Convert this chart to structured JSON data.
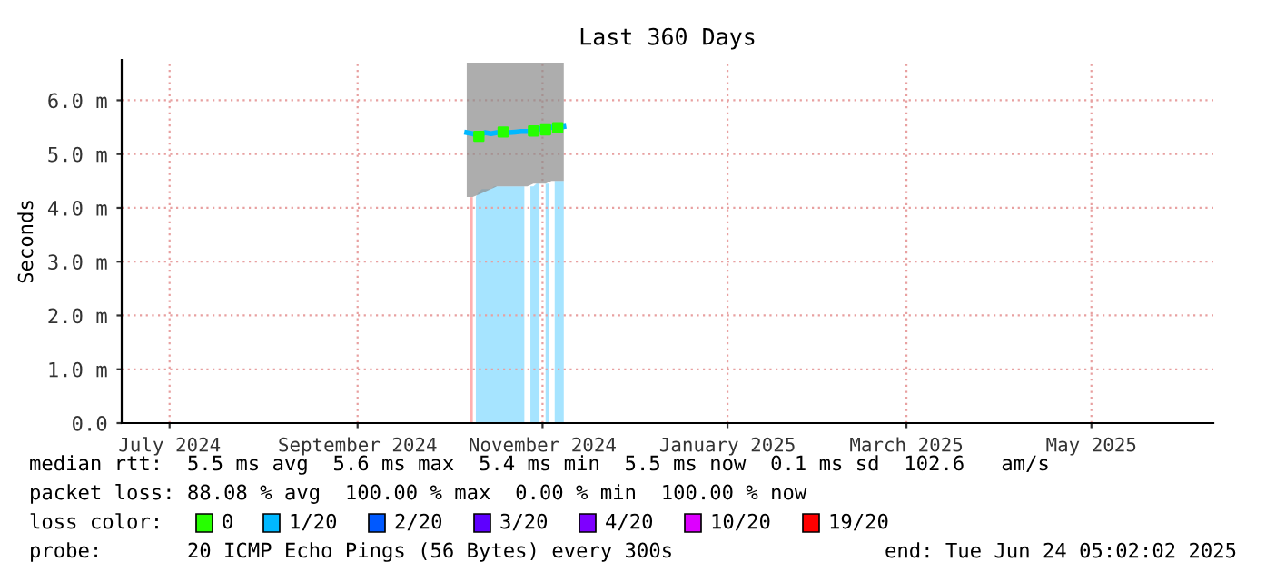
{
  "chart_data": {
    "type": "line",
    "title": "Last 360 Days",
    "ylabel": "Seconds",
    "xlim": [
      "2024-06-29T05:02",
      "2025-06-24T05:02"
    ],
    "xticks": [
      {
        "value": "2024-07-15",
        "label": "July 2024"
      },
      {
        "value": "2024-09-15",
        "label": "September 2024"
      },
      {
        "value": "2024-11-15",
        "label": "November 2024"
      },
      {
        "value": "2025-01-15",
        "label": "January 2025"
      },
      {
        "value": "2025-03-15",
        "label": "March 2025"
      },
      {
        "value": "2025-05-15",
        "label": "May 2025"
      }
    ],
    "ylim": [
      0,
      6.75
    ],
    "yticks": [
      {
        "value": 0,
        "label": "0.0"
      },
      {
        "value": 1,
        "label": "1.0 m"
      },
      {
        "value": 2,
        "label": "2.0 m"
      },
      {
        "value": 3,
        "label": "3.0 m"
      },
      {
        "value": 4,
        "label": "4.0 m"
      },
      {
        "value": 5,
        "label": "5.0 m"
      },
      {
        "value": 6,
        "label": "6.0 m"
      }
    ],
    "grid": true,
    "legend": "bottom",
    "legend_title": "loss color:",
    "series": [
      {
        "type": "area",
        "color": "#ffb0b0",
        "x": [
          "2024-10-22",
          "2024-10-23"
        ],
        "values": [
          4.2,
          4.2
        ]
      },
      {
        "type": "area",
        "color": "#a6e4ff",
        "x": [
          "2024-10-24",
          "2024-10-25",
          "2024-10-26",
          "2024-10-27",
          "2024-10-28",
          "2024-10-29",
          "2024-10-30",
          "2024-10-31",
          "2024-11-01",
          "2024-11-02",
          "2024-11-03",
          "2024-11-04",
          "2024-11-05",
          "2024-11-06",
          "2024-11-07",
          "2024-11-08",
          "2024-11-09",
          "2024-11-10",
          "2024-11-11",
          "2024-11-12",
          "2024-11-13",
          "2024-11-14",
          "2024-11-15",
          "2024-11-16",
          "2024-11-17",
          "2024-11-18",
          "2024-11-19",
          "2024-11-20",
          "2024-11-21",
          "2024-11-22"
        ],
        "values": [
          4.2,
          4.3,
          4.35,
          4.35,
          4.35,
          4.35,
          4.4,
          4.4,
          4.4,
          4.4,
          4.4,
          4.4,
          4.4,
          4.4,
          4.4,
          4.4,
          4.4,
          null,
          4.4,
          4.4,
          4.45,
          4.45,
          null,
          4.45,
          4.45,
          null,
          4.5,
          4.5,
          4.5,
          4.5
        ]
      },
      {
        "type": "scatter",
        "name": "0",
        "color": "#26ff00",
        "marker": "square",
        "x": [
          "2024-10-25",
          "2024-11-02",
          "2024-11-12",
          "2024-11-16",
          "2024-11-20"
        ],
        "values": [
          5.33,
          5.41,
          5.43,
          5.45,
          5.49
        ]
      },
      {
        "name": "1/20",
        "color": "#00b8ff",
        "x": [
          "2024-10-21",
          "2024-10-23",
          "2024-10-25",
          "2024-10-27",
          "2024-10-29",
          "2024-10-31",
          "2024-11-02",
          "2024-11-04",
          "2024-11-06",
          "2024-11-08",
          "2024-11-10",
          "2024-11-12",
          "2024-11-14",
          "2024-11-16",
          "2024-11-18",
          "2024-11-20",
          "2024-11-22"
        ],
        "values": [
          5.4,
          5.38,
          5.33,
          5.4,
          5.38,
          5.4,
          5.41,
          5.4,
          5.41,
          5.42,
          5.42,
          5.43,
          5.47,
          5.45,
          5.5,
          5.49,
          5.51
        ],
        "lower": [
          4.2,
          4.2,
          4.25,
          4.3,
          4.35,
          4.4,
          4.4,
          4.4,
          4.4,
          4.4,
          4.4,
          4.45,
          4.45,
          4.45,
          4.5,
          4.5,
          4.5
        ],
        "upper": [
          6.7,
          6.7,
          6.7,
          6.7,
          6.7,
          6.7,
          6.7,
          6.7,
          6.7,
          6.7,
          6.7,
          6.7,
          6.7,
          6.7,
          6.7,
          6.7,
          6.7
        ]
      },
      {
        "type": "scatter",
        "name": "2/20",
        "color": "#0059ff"
      },
      {
        "type": "scatter",
        "name": "3/20",
        "color": "#5e00ff"
      },
      {
        "type": "scatter",
        "name": "4/20",
        "color": "#7e00ff"
      },
      {
        "type": "scatter",
        "name": "10/20",
        "color": "#dd00ff"
      },
      {
        "type": "scatter",
        "name": "19/20",
        "color": "#ff0000"
      }
    ],
    "annotations": [
      "median rtt:  5.5 ms avg  5.6 ms max  5.4 ms min  5.5 ms now  0.1 ms sd  102.6   am/s",
      "packet loss: 88.08 % avg  100.00 % max  0.00 % min  100.00 % now",
      "probe:       20 ICMP Echo Pings (56 Bytes) every 300s",
      "end: Tue Jun 24 05:02:02 2025"
    ]
  }
}
